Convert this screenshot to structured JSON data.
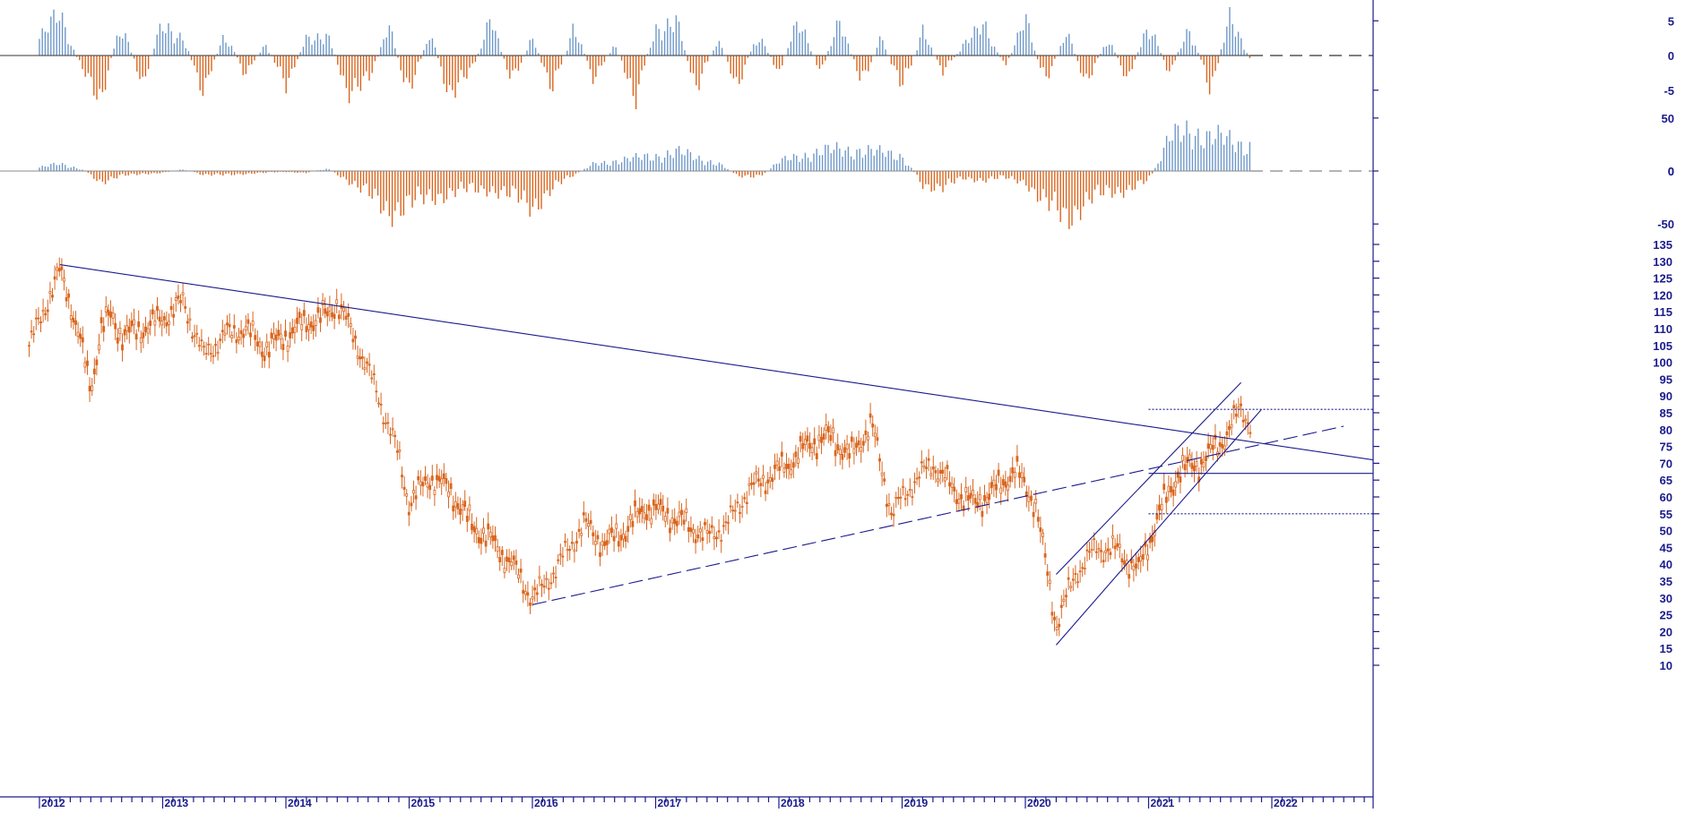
{
  "chart_data": [
    {
      "type": "bar",
      "panel": "oscillator-top",
      "y_ticks": [
        5,
        -5
      ],
      "ylim": [
        -8,
        8
      ],
      "zero_line": 0,
      "colors": {
        "positive": "#6f98c8",
        "negative": "#d9661f",
        "zero_line": "#333333"
      },
      "series": [
        {
          "x": [
            "2012-01",
            "2012-03",
            "2012-05",
            "2012-07",
            "2012-09",
            "2012-11",
            "2013-01",
            "2013-03",
            "2013-05",
            "2013-07",
            "2013-09",
            "2013-11",
            "2014-01",
            "2014-03",
            "2014-05",
            "2014-07",
            "2014-09",
            "2014-11",
            "2015-01",
            "2015-03",
            "2015-05",
            "2015-07",
            "2015-09",
            "2015-11",
            "2016-01",
            "2016-03",
            "2016-05",
            "2016-07",
            "2016-09",
            "2016-11",
            "2017-01",
            "2017-03",
            "2017-05",
            "2017-07",
            "2017-09",
            "2017-11",
            "2018-01",
            "2018-03",
            "2018-05",
            "2018-07",
            "2018-09",
            "2018-11",
            "2019-01",
            "2019-03",
            "2019-05",
            "2019-07",
            "2019-09",
            "2019-11",
            "2020-01",
            "2020-03",
            "2020-05",
            "2020-07",
            "2020-09",
            "2020-11",
            "2021-01",
            "2021-03",
            "2021-05",
            "2021-07",
            "2021-09",
            "2021-11"
          ],
          "values": [
            3,
            7,
            -2,
            -7,
            6,
            -5,
            6,
            3,
            -6,
            4,
            -3,
            2,
            -5,
            3,
            4,
            -6,
            -5,
            5,
            -7,
            4,
            -7,
            -3,
            6,
            -5,
            3,
            -6,
            5,
            -4,
            2,
            -7,
            5,
            6,
            -6,
            3,
            -5,
            4,
            -3,
            7,
            -3,
            6,
            -5,
            3,
            -6,
            4,
            -3,
            2,
            5,
            -2,
            6,
            -5,
            4,
            -5,
            3,
            -4,
            6,
            -3,
            5,
            -6,
            7,
            -1
          ]
        }
      ]
    },
    {
      "type": "bar",
      "panel": "oscillator-middle",
      "y_ticks": [
        50,
        0,
        -50
      ],
      "ylim": [
        -60,
        60
      ],
      "zero_line": 0,
      "colors": {
        "positive": "#6f98c8",
        "negative": "#d9661f",
        "zero_line": "#888888"
      },
      "series": [
        {
          "x": [
            "2012-01",
            "2012-03",
            "2012-05",
            "2012-07",
            "2012-09",
            "2012-11",
            "2013-01",
            "2013-03",
            "2013-05",
            "2013-07",
            "2013-09",
            "2013-11",
            "2014-01",
            "2014-03",
            "2014-05",
            "2014-07",
            "2014-09",
            "2014-11",
            "2015-01",
            "2015-03",
            "2015-05",
            "2015-07",
            "2015-09",
            "2015-11",
            "2016-01",
            "2016-03",
            "2016-05",
            "2016-07",
            "2016-09",
            "2016-11",
            "2017-01",
            "2017-03",
            "2017-05",
            "2017-07",
            "2017-09",
            "2017-11",
            "2018-01",
            "2018-03",
            "2018-05",
            "2018-07",
            "2018-09",
            "2018-11",
            "2019-01",
            "2019-03",
            "2019-05",
            "2019-07",
            "2019-09",
            "2019-11",
            "2020-01",
            "2020-03",
            "2020-05",
            "2020-07",
            "2020-09",
            "2020-11",
            "2021-01",
            "2021-03",
            "2021-05",
            "2021-07",
            "2021-09",
            "2021-11"
          ],
          "values": [
            4,
            8,
            3,
            -12,
            -6,
            -3,
            -2,
            2,
            -4,
            -5,
            -3,
            -2,
            -1,
            -2,
            3,
            -10,
            -28,
            -45,
            -40,
            -30,
            -25,
            -22,
            -20,
            -30,
            -40,
            -20,
            -5,
            8,
            12,
            14,
            18,
            22,
            15,
            10,
            -5,
            -8,
            10,
            18,
            22,
            24,
            25,
            20,
            18,
            -15,
            -20,
            -8,
            -10,
            -8,
            -12,
            -40,
            -52,
            -35,
            -25,
            -20,
            -12,
            35,
            50,
            38,
            35,
            30
          ]
        }
      ]
    },
    {
      "type": "candlestick",
      "panel": "price",
      "x_labels": [
        "2012",
        "2013",
        "2014",
        "2015",
        "2016",
        "2017",
        "2018",
        "2019",
        "2020",
        "2021",
        "2022"
      ],
      "y_ticks": [
        135,
        130,
        125,
        120,
        115,
        110,
        105,
        100,
        95,
        90,
        85,
        80,
        75,
        70,
        65,
        60,
        55,
        50,
        45,
        40,
        35,
        30,
        25,
        20,
        15,
        10
      ],
      "ylim": [
        6,
        138
      ],
      "colors": {
        "candles": "#d9661f",
        "trendlines": "#1a1a8c"
      },
      "series": [
        {
          "x": [
            "2011-12",
            "2012-01",
            "2012-02",
            "2012-03",
            "2012-04",
            "2012-05",
            "2012-06",
            "2012-07",
            "2012-08",
            "2012-09",
            "2012-11",
            "2013-01",
            "2013-03",
            "2013-05",
            "2013-07",
            "2013-09",
            "2013-11",
            "2014-01",
            "2014-03",
            "2014-05",
            "2014-06",
            "2014-08",
            "2014-10",
            "2014-12",
            "2015-01",
            "2015-03",
            "2015-05",
            "2015-07",
            "2015-09",
            "2015-11",
            "2016-01",
            "2016-02",
            "2016-04",
            "2016-06",
            "2016-08",
            "2016-10",
            "2016-12",
            "2017-02",
            "2017-04",
            "2017-06",
            "2017-08",
            "2017-10",
            "2017-12",
            "2018-02",
            "2018-04",
            "2018-06",
            "2018-08",
            "2018-10",
            "2018-12",
            "2019-02",
            "2019-04",
            "2019-06",
            "2019-08",
            "2019-10",
            "2019-12",
            "2020-02",
            "2020-03",
            "2020-04",
            "2020-06",
            "2020-08",
            "2020-10",
            "2020-12",
            "2021-02",
            "2021-04",
            "2021-06",
            "2021-08",
            "2021-10",
            "2021-11"
          ],
          "values": [
            105,
            112,
            120,
            127,
            118,
            106,
            92,
            110,
            114,
            108,
            110,
            113,
            118,
            102,
            108,
            110,
            104,
            108,
            112,
            114,
            118,
            105,
            90,
            72,
            58,
            66,
            62,
            52,
            47,
            40,
            30,
            33,
            42,
            52,
            46,
            50,
            57,
            55,
            52,
            48,
            52,
            62,
            66,
            70,
            76,
            78,
            72,
            82,
            55,
            64,
            70,
            62,
            58,
            62,
            68,
            58,
            40,
            22,
            38,
            45,
            44,
            38,
            55,
            68,
            70,
            76,
            86,
            82
          ]
        }
      ],
      "trendlines": [
        {
          "style": "solid",
          "from": [
            "2012-03",
            129
          ],
          "to": [
            "2022-11",
            71
          ]
        },
        {
          "style": "dashed",
          "from": [
            "2016-01",
            28
          ],
          "to": [
            "2022-08",
            81
          ]
        },
        {
          "style": "solid",
          "from": [
            "2020-04",
            16
          ],
          "to": [
            "2021-12",
            86
          ]
        },
        {
          "style": "solid",
          "from": [
            "2020-04",
            37
          ],
          "to": [
            "2021-10",
            94
          ]
        },
        {
          "style": "solid",
          "from": [
            "2021-01",
            67
          ],
          "to": [
            "2022-11",
            67
          ]
        },
        {
          "style": "dotted",
          "from": [
            "2021-01",
            86
          ],
          "to": [
            "2022-11",
            86
          ]
        },
        {
          "style": "dotted",
          "from": [
            "2021-01",
            55
          ],
          "to": [
            "2022-11",
            55
          ]
        }
      ]
    }
  ]
}
